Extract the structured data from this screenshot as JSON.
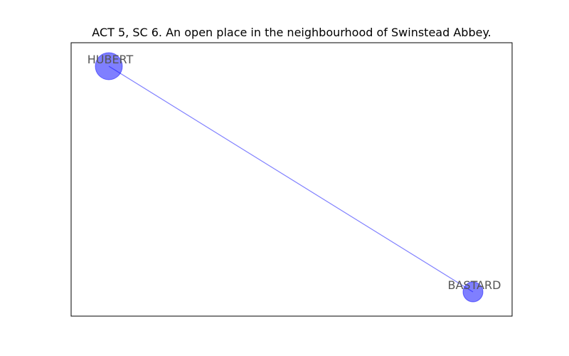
{
  "title": "ACT 5, SC 6. An open place in the neighbourhood of Swinstead Abbey.",
  "colors": {
    "node": "#0000ff",
    "edge": "#0000ff",
    "label": "#555555",
    "frame": "#000000"
  },
  "graph": {
    "nodes": [
      {
        "id": "HUBERT",
        "label": "HUBERT",
        "weight": 2
      },
      {
        "id": "BASTARD",
        "label": "BASTARD",
        "weight": 1
      }
    ],
    "edges": [
      {
        "source": "HUBERT",
        "target": "BASTARD"
      }
    ]
  }
}
